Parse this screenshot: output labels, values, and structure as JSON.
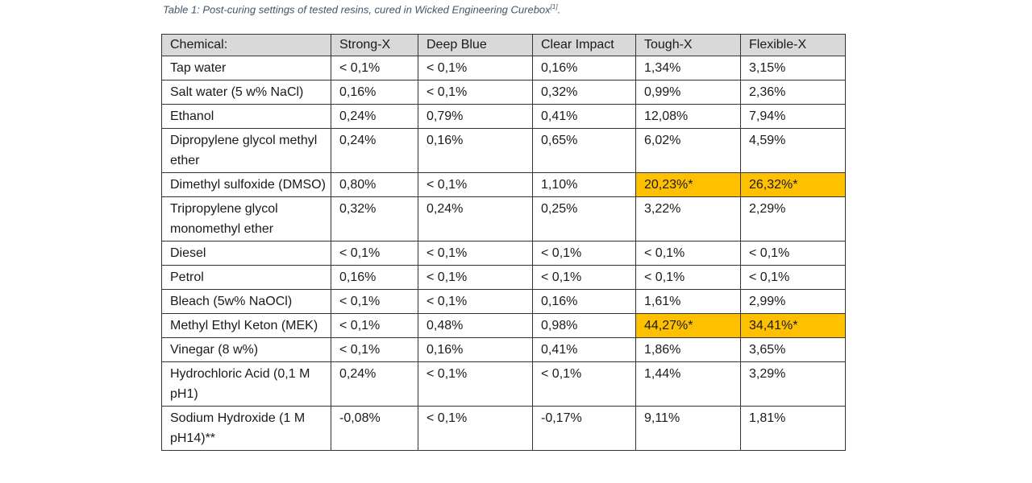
{
  "caption": {
    "text": "Table 1: Post-curing settings of tested resins, cured in Wicked Engineering Curebox",
    "reference": "[1]",
    "end": "."
  },
  "table": {
    "headers": [
      "Chemical:",
      "Strong-X",
      "Deep Blue",
      "Clear Impact",
      "Tough-X",
      "Flexible-X"
    ],
    "rows": [
      [
        "Tap water",
        "< 0,1%",
        "< 0,1%",
        "0,16%",
        "1,34%",
        "3,15%"
      ],
      [
        "Salt water (5 w% NaCl)",
        "0,16%",
        "< 0,1%",
        "0,32%",
        "0,99%",
        "2,36%"
      ],
      [
        "Ethanol",
        "0,24%",
        "0,79%",
        "0,41%",
        "12,08%",
        "7,94%"
      ],
      [
        "Dipropylene glycol methyl ether",
        "0,24%",
        "0,16%",
        "0,65%",
        "6,02%",
        "4,59%"
      ],
      [
        "Dimethyl sulfoxide (DMSO)",
        "0,80%",
        "< 0,1%",
        "1,10%",
        "20,23%*",
        "26,32%*"
      ],
      [
        "Tripropylene glycol monomethyl ether",
        "0,32%",
        "0,24%",
        "0,25%",
        "3,22%",
        "2,29%"
      ],
      [
        "Diesel",
        "< 0,1%",
        "< 0,1%",
        "< 0,1%",
        "< 0,1%",
        "< 0,1%"
      ],
      [
        "Petrol",
        "0,16%",
        "< 0,1%",
        "< 0,1%",
        "< 0,1%",
        "< 0,1%"
      ],
      [
        "Bleach (5w% NaOCl)",
        "< 0,1%",
        "< 0,1%",
        "0,16%",
        "1,61%",
        "2,99%"
      ],
      [
        "Methyl Ethyl Keton (MEK)",
        "< 0,1%",
        "0,48%",
        "0,98%",
        "44,27%*",
        "34,41%*"
      ],
      [
        "Vinegar (8 w%)",
        "< 0,1%",
        "0,16%",
        "0,41%",
        "1,86%",
        "3,65%"
      ],
      [
        "Hydrochloric Acid (0,1 M pH1)",
        "0,24%",
        "< 0,1%",
        "< 0,1%",
        "1,44%",
        "3,29%"
      ],
      [
        "Sodium Hydroxide (1 M pH14)**",
        "-0,08%",
        "< 0,1%",
        "-0,17%",
        "9,11%",
        "1,81%"
      ]
    ],
    "highlighted_cells": [
      [
        4,
        4
      ],
      [
        4,
        5
      ],
      [
        9,
        4
      ],
      [
        9,
        5
      ]
    ],
    "highlight_color": "#ffc000",
    "header_color": "#d9d9d9"
  }
}
